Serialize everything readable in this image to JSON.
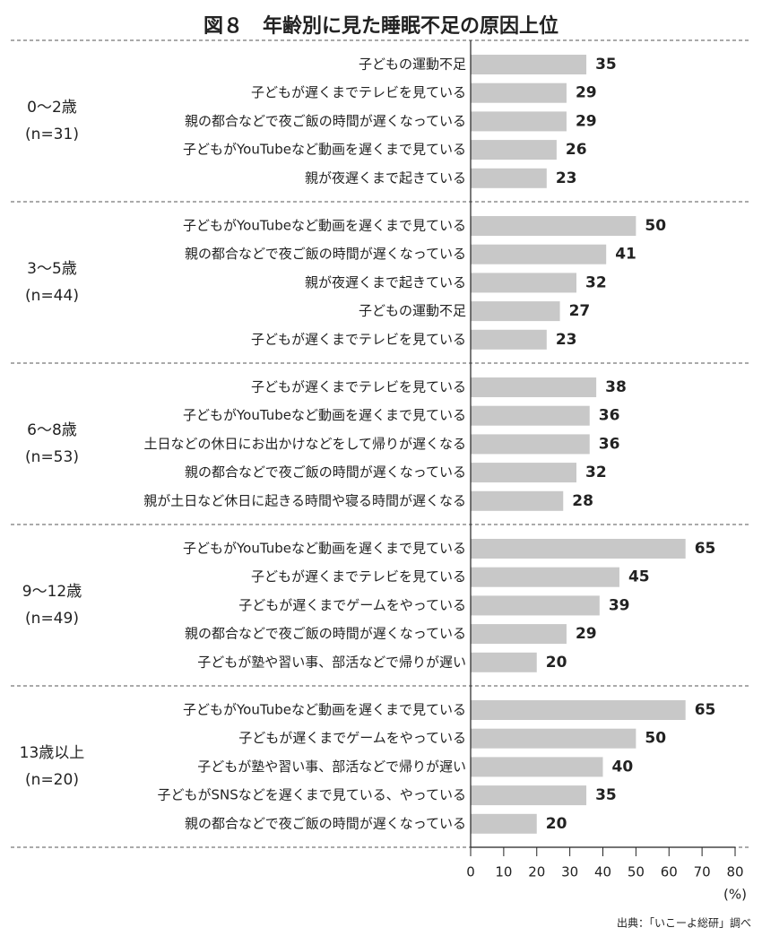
{
  "chart_data": {
    "type": "bar",
    "title": "図８　年齢別に見た睡眠不足の原因上位",
    "color": "#c8c8c8",
    "groups": [
      {
        "label": "0〜2歳",
        "n": "(n=31)",
        "categories": [
          "子どもの運動不足",
          "子どもが遅くまでテレビを見ている",
          "親の都合などで夜ご飯の時間が遅くなっている",
          "子どもがYouTubeなど動画を遅くまで見ている",
          "親が夜遅くまで起きている"
        ],
        "values": [
          35,
          29,
          29,
          26,
          23
        ]
      },
      {
        "label": "3〜5歳",
        "n": "(n=44)",
        "categories": [
          "子どもがYouTubeなど動画を遅くまで見ている",
          "親の都合などで夜ご飯の時間が遅くなっている",
          "親が夜遅くまで起きている",
          "子どもの運動不足",
          "子どもが遅くまでテレビを見ている"
        ],
        "values": [
          50,
          41,
          32,
          27,
          23
        ]
      },
      {
        "label": "6〜8歳",
        "n": "(n=53)",
        "categories": [
          "子どもが遅くまでテレビを見ている",
          "子どもがYouTubeなど動画を遅くまで見ている",
          "土日などの休日にお出かけなどをして帰りが遅くなる",
          "親の都合などで夜ご飯の時間が遅くなっている",
          "親が土日など休日に起きる時間や寝る時間が遅くなる"
        ],
        "values": [
          38,
          36,
          36,
          32,
          28
        ]
      },
      {
        "label": "9〜12歳",
        "n": "(n=49)",
        "categories": [
          "子どもがYouTubeなど動画を遅くまで見ている",
          "子どもが遅くまでテレビを見ている",
          "子どもが遅くまでゲームをやっている",
          "親の都合などで夜ご飯の時間が遅くなっている",
          "子どもが塾や習い事、部活などで帰りが遅い"
        ],
        "values": [
          65,
          45,
          39,
          29,
          20
        ]
      },
      {
        "label": "13歳以上",
        "n": "(n=20)",
        "categories": [
          "子どもがYouTubeなど動画を遅くまで見ている",
          "子どもが遅くまでゲームをやっている",
          "子どもが塾や習い事、部活などで帰りが遅い",
          "子どもがSNSなどを遅くまで見ている、やっている",
          "親の都合などで夜ご飯の時間が遅くなっている"
        ],
        "values": [
          65,
          50,
          40,
          35,
          20
        ]
      }
    ],
    "xlim": [
      0,
      80
    ],
    "xticks": [
      0,
      10,
      20,
      30,
      40,
      50,
      60,
      70,
      80
    ],
    "x_unit": "(%)",
    "source": "出典：「いこーよ総研」調べ"
  }
}
